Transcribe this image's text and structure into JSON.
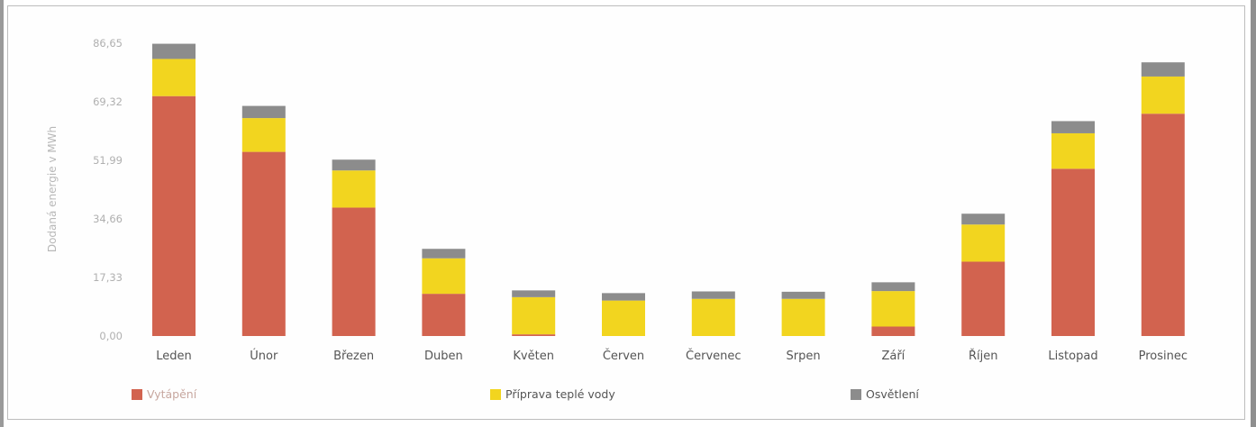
{
  "chart_data": {
    "type": "bar",
    "stacked": true,
    "ylabel": "Dodaná energie v MWh",
    "xlabel": "",
    "ylim": [
      0,
      86.65
    ],
    "yticks": [
      "0,00",
      "17,33",
      "34,66",
      "51,99",
      "69,32",
      "86,65"
    ],
    "grid": false,
    "legend": "bottom",
    "categories": [
      "Leden",
      "Únor",
      "Březen",
      "Duben",
      "Květen",
      "Červen",
      "Červenec",
      "Srpen",
      "Září",
      "Říjen",
      "Listopad",
      "Prosinec"
    ],
    "series": [
      {
        "name": "Vytápění",
        "color": "#d2634f",
        "values": [
          71.0,
          54.5,
          38.0,
          12.5,
          0.5,
          0,
          0,
          0,
          2.8,
          22.0,
          49.5,
          65.8
        ]
      },
      {
        "name": "Příprava teplé vody",
        "color": "#f2d51f",
        "values": [
          11.0,
          10.0,
          11.0,
          10.5,
          11.0,
          10.5,
          11.0,
          11.0,
          10.5,
          11.0,
          10.5,
          11.0
        ]
      },
      {
        "name": "Osvětlení",
        "color": "#8c8c8c",
        "values": [
          4.5,
          3.6,
          3.2,
          2.8,
          2.0,
          2.2,
          2.2,
          2.1,
          2.6,
          3.2,
          3.6,
          4.2
        ]
      }
    ]
  }
}
